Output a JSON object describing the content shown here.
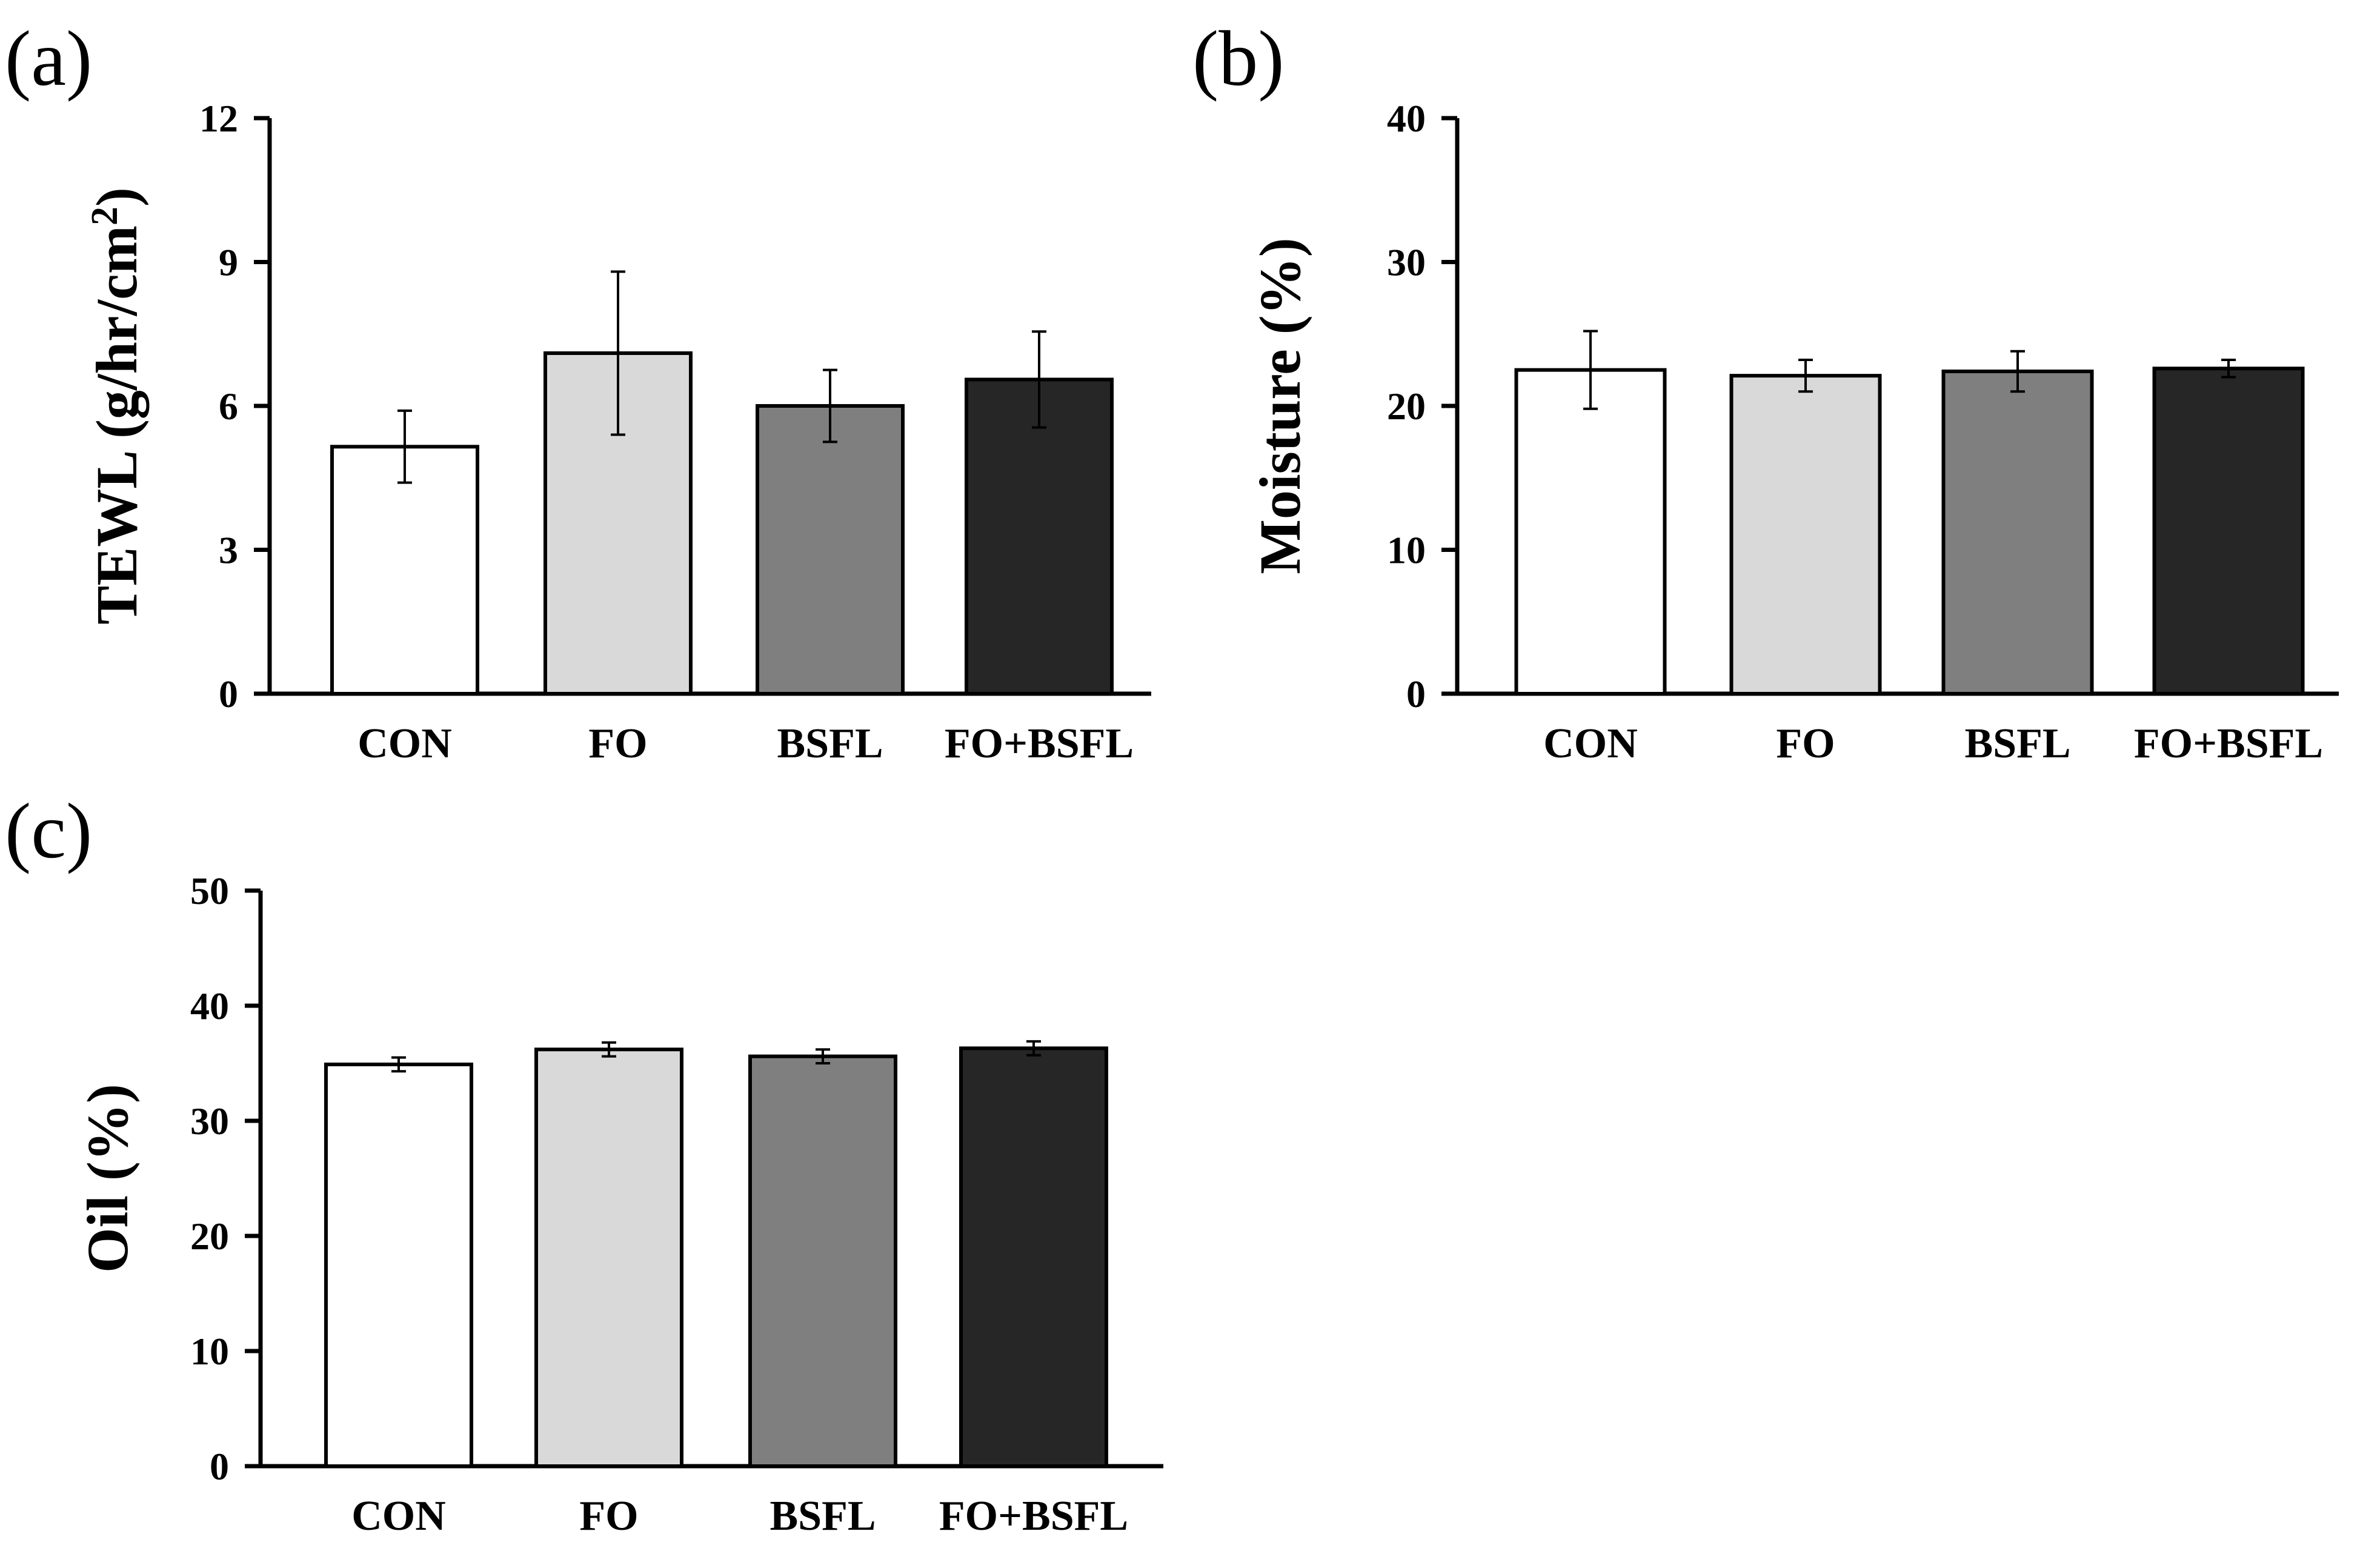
{
  "chart_data": [
    {
      "panel_label": "(a)",
      "type": "bar",
      "ylabel_main": "TEWL (g/hr/cm",
      "ylabel_sup": "2",
      "ylabel_close": ")",
      "ylim": [
        0,
        12
      ],
      "yticks": [
        "0",
        "3",
        "6",
        "9",
        "12"
      ],
      "categories": [
        "CON",
        "FO",
        "BSFL",
        "FO+BSFL"
      ],
      "values": [
        5.15,
        7.1,
        6.0,
        6.55
      ],
      "errors": [
        0.75,
        1.7,
        0.75,
        1.0
      ],
      "colors": [
        "#ffffff",
        "#d9d9d9",
        "#7f7f7f",
        "#262626"
      ]
    },
    {
      "panel_label": "(b)",
      "type": "bar",
      "ylabel_main": "Moisture (%)",
      "ylim": [
        0,
        40
      ],
      "yticks": [
        "0",
        "10",
        "20",
        "30",
        "40"
      ],
      "categories": [
        "CON",
        "FO",
        "BSFL",
        "FO+BSFL"
      ],
      "values": [
        22.5,
        22.1,
        22.4,
        22.6
      ],
      "errors": [
        2.7,
        1.1,
        1.4,
        0.6
      ],
      "colors": [
        "#ffffff",
        "#d9d9d9",
        "#7f7f7f",
        "#262626"
      ]
    },
    {
      "panel_label": "(c)",
      "type": "bar",
      "ylabel_main": "Oil (%)",
      "ylim": [
        0,
        50
      ],
      "yticks": [
        "0",
        "10",
        "20",
        "30",
        "40",
        "50"
      ],
      "categories": [
        "CON",
        "FO",
        "BSFL",
        "FO+BSFL"
      ],
      "values": [
        34.9,
        36.2,
        35.6,
        36.3
      ],
      "errors": [
        0.6,
        0.6,
        0.6,
        0.6
      ],
      "colors": [
        "#ffffff",
        "#d9d9d9",
        "#7f7f7f",
        "#262626"
      ]
    }
  ]
}
